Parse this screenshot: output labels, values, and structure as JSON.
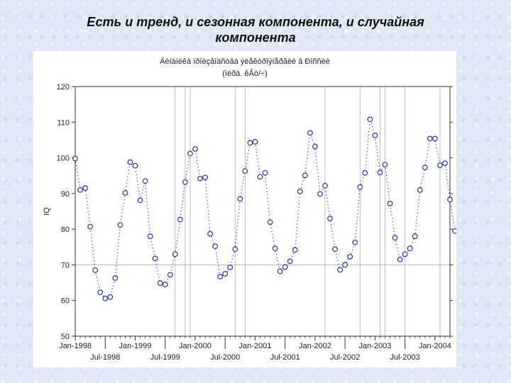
{
  "slide": {
    "title_line1": "Есть и тренд, и сезонная компонента, и случайная",
    "title_line2": "компонента"
  },
  "chart_data": {
    "type": "scatter",
    "title": "Äèíàìèêà ïðîèçâîäñòâà ýëåêòðîýíåðãèè â Ðîññèè",
    "subtitle": "(ìëðä. êÂò/÷)",
    "xlabel": "",
    "ylabel": "IQ",
    "ylim": [
      50,
      120
    ],
    "yticks": [
      50,
      60,
      70,
      80,
      90,
      100,
      110,
      120
    ],
    "xlim_months": [
      0,
      75
    ],
    "xtick_labels": [
      "Jan-1998",
      "Jul-1998",
      "Jan-1999",
      "Jul-1999",
      "Jan-2000",
      "Jul-2000",
      "Jan-2001",
      "Jul-2001",
      "Jan-2002",
      "Jul-2002",
      "Jan-2003",
      "Jul-2003",
      "Jan-2004"
    ],
    "grid": {
      "horizontal": [
        70
      ],
      "vertical_months": [
        20,
        22,
        23,
        32,
        34,
        50,
        57,
        61,
        62,
        66,
        73
      ]
    },
    "marker": "circle",
    "line_style": "dotted",
    "color": "#2233bb",
    "series": [
      {
        "values": [
          99.8,
          91.0,
          91.5,
          80.7,
          68.5,
          62.3,
          60.6,
          61.0,
          66.3,
          81.2,
          90.2,
          98.8,
          97.8,
          88.1,
          93.5,
          78.0,
          71.8,
          64.9,
          64.5,
          67.2,
          73.0,
          82.7,
          93.2,
          101.2,
          102.5,
          94.2,
          94.5,
          78.7,
          75.2,
          66.7,
          67.5,
          69.3,
          74.4,
          88.5,
          96.3,
          104.2,
          104.5,
          94.7,
          95.8,
          82.0,
          74.6,
          68.2,
          69.4,
          71.0,
          74.2,
          90.6,
          95.1,
          107.0,
          103.2,
          89.9,
          92.2,
          83.0,
          74.4,
          68.6,
          70.0,
          72.3,
          76.3,
          91.8,
          95.8,
          110.8,
          106.3,
          95.9,
          98.1,
          87.2,
          77.6,
          71.5,
          73.0,
          74.6,
          78.0,
          91.0,
          97.3,
          105.4,
          105.4,
          97.9,
          98.5,
          88.3,
          79.5
        ]
      }
    ]
  }
}
